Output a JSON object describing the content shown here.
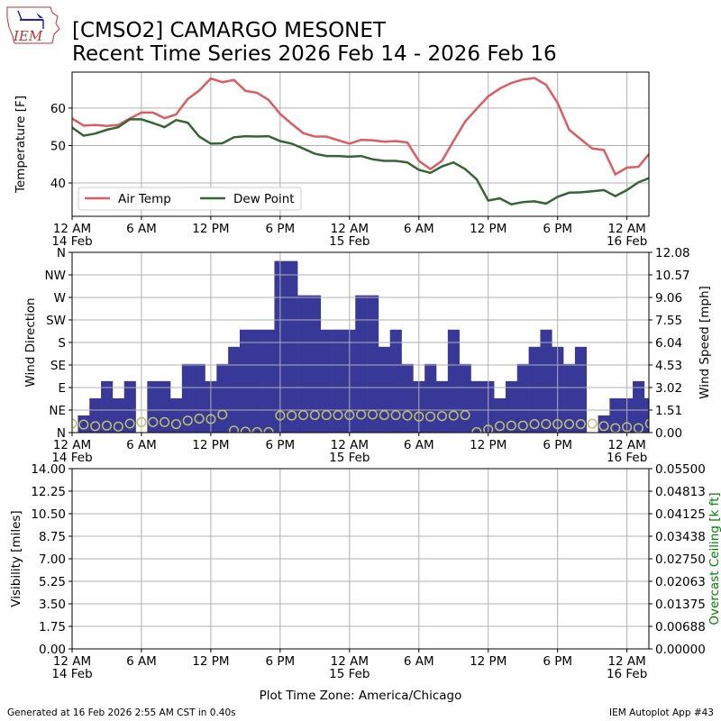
{
  "header": {
    "logo_text": "IEM",
    "title_line1": "[CMSO2] CAMARGO MESONET",
    "title_line2": "Recent Time Series 2026 Feb 14 - 2026 Feb 16"
  },
  "footer": {
    "generated": "Generated at 16 Feb 2026 2:55 AM CST in 0.40s",
    "app": "IEM Autoplot App #43",
    "timezone": "Plot Time Zone: America/Chicago"
  },
  "x_axis": {
    "hours_span": [
      0,
      49.9
    ],
    "ticks": [
      {
        "hour": 0,
        "label": "12 AM",
        "date": "14 Feb"
      },
      {
        "hour": 6,
        "label": "6 AM",
        "date": ""
      },
      {
        "hour": 12,
        "label": "12 PM",
        "date": ""
      },
      {
        "hour": 18,
        "label": "6 PM",
        "date": ""
      },
      {
        "hour": 24,
        "label": "12 AM",
        "date": "15 Feb"
      },
      {
        "hour": 30,
        "label": "6 AM",
        "date": ""
      },
      {
        "hour": 36,
        "label": "12 PM",
        "date": ""
      },
      {
        "hour": 42,
        "label": "6 PM",
        "date": ""
      },
      {
        "hour": 48,
        "label": "12 AM",
        "date": "16 Feb"
      }
    ]
  },
  "chart_data": [
    {
      "type": "line",
      "ylabel": "Temperature [F]",
      "ylim": [
        31.1,
        69.6
      ],
      "yticks": [
        40,
        50,
        60
      ],
      "grid": true,
      "legend_placement": "lower-left",
      "x_hours": [
        0,
        1,
        2,
        3,
        4,
        5,
        6,
        7,
        8,
        9,
        10,
        11,
        12,
        13,
        14,
        15,
        16,
        17,
        18,
        19,
        20,
        21,
        22,
        23,
        24,
        25,
        26,
        27,
        28,
        29,
        30,
        31,
        32,
        33,
        34,
        35,
        36,
        37,
        38,
        39,
        40,
        41,
        42,
        43,
        44,
        45,
        46,
        47,
        48,
        49,
        50
      ],
      "series": [
        {
          "name": "Air Temp",
          "color": "#dd5c62",
          "values": [
            57.2,
            55.3,
            55.5,
            55.2,
            55.5,
            57.2,
            58.8,
            58.8,
            57.3,
            58.3,
            62.4,
            64.7,
            67.9,
            66.9,
            67.5,
            64.6,
            64.1,
            62.2,
            58.4,
            55.8,
            53.3,
            52.4,
            52.4,
            51.4,
            50.5,
            51.5,
            51.4,
            51.0,
            51.2,
            50.8,
            45.9,
            43.7,
            45.9,
            51.2,
            56.4,
            59.8,
            63.1,
            65.2,
            66.7,
            67.6,
            68.0,
            66.2,
            61.4,
            54.2,
            51.7,
            49.2,
            48.8,
            42.3,
            44.1,
            44.3,
            48.1
          ]
        },
        {
          "name": "Dew Point",
          "color": "#336633",
          "values": [
            54.8,
            52.6,
            53.2,
            54.2,
            54.9,
            57.0,
            57.0,
            56.0,
            54.9,
            56.8,
            56.1,
            52.4,
            50.5,
            50.6,
            52.2,
            52.5,
            52.4,
            52.5,
            51.2,
            50.5,
            49.2,
            47.8,
            47.2,
            47.2,
            47.0,
            47.2,
            46.3,
            45.9,
            45.9,
            45.5,
            43.5,
            42.7,
            44.4,
            45.5,
            43.7,
            41.0,
            35.3,
            35.9,
            34.3,
            34.9,
            35.1,
            34.5,
            36.3,
            37.4,
            37.5,
            37.8,
            38.1,
            36.5,
            38.1,
            40.2,
            41.4
          ]
        }
      ]
    },
    {
      "type": "bar",
      "ylabel": "Wind Direction",
      "y2label": "Wind Speed [mph]",
      "dir_ticks": [
        "N",
        "NE",
        "E",
        "SE",
        "S",
        "SW",
        "W",
        "NW",
        "N"
      ],
      "dir_lim": [
        0,
        360
      ],
      "speed_lim": [
        0,
        12.08
      ],
      "speed_ticks": [
        "0.00",
        "1.51",
        "3.02",
        "4.53",
        "6.04",
        "7.55",
        "9.06",
        "10.57",
        "12.08"
      ],
      "x_hours": [
        0,
        1,
        2,
        3,
        4,
        5,
        6,
        7,
        8,
        9,
        10,
        11,
        12,
        13,
        14,
        15,
        16,
        17,
        18,
        19,
        20,
        21,
        22,
        23,
        24,
        25,
        26,
        27,
        28,
        29,
        30,
        31,
        32,
        33,
        34,
        35,
        36,
        37,
        38,
        39,
        40,
        41,
        42,
        43,
        44,
        45,
        46,
        47,
        48,
        49,
        50
      ],
      "wind_speed_mph": {
        "color": "#383898",
        "values": [
          0,
          1.15,
          2.3,
          3.45,
          2.3,
          3.45,
          0,
          3.45,
          3.45,
          2.3,
          4.6,
          4.6,
          3.45,
          4.6,
          5.75,
          6.9,
          6.9,
          6.9,
          11.5,
          11.5,
          9.2,
          9.2,
          6.9,
          6.9,
          6.9,
          9.2,
          9.2,
          5.75,
          6.9,
          4.6,
          3.45,
          4.6,
          3.45,
          6.9,
          4.6,
          3.45,
          3.45,
          2.3,
          3.45,
          4.6,
          5.75,
          6.9,
          5.75,
          4.6,
          5.75,
          0,
          1.15,
          2.3,
          2.3,
          3.45,
          2.3
        ]
      },
      "wind_direction_deg": {
        "color": "#bfbf6e",
        "values": [
          18,
          16,
          13,
          14,
          12,
          18,
          21,
          21,
          21,
          17,
          24,
          28,
          27,
          36,
          4,
          2,
          1,
          1,
          34,
          34,
          35,
          35,
          35,
          35,
          35,
          36,
          36,
          35,
          35,
          34,
          32,
          32,
          33,
          34,
          35,
          1,
          6,
          13,
          14,
          14,
          17,
          17,
          17,
          17,
          17,
          18,
          13,
          9,
          11,
          9,
          18
        ]
      }
    },
    {
      "type": "line",
      "ylabel": "Visibility [miles]",
      "y2label": "Overcast Ceiling [k ft]",
      "y2label_color": "#008000",
      "ylim": [
        0,
        14
      ],
      "yticks": [
        "0.00",
        "1.75",
        "3.50",
        "5.25",
        "7.00",
        "8.75",
        "10.50",
        "12.25",
        "14.00"
      ],
      "y2lim": [
        0,
        0.055
      ],
      "y2ticks": [
        "0.00000",
        "0.00688",
        "0.01375",
        "0.02063",
        "0.02750",
        "0.03438",
        "0.04125",
        "0.04813",
        "0.05500"
      ],
      "series": []
    }
  ]
}
